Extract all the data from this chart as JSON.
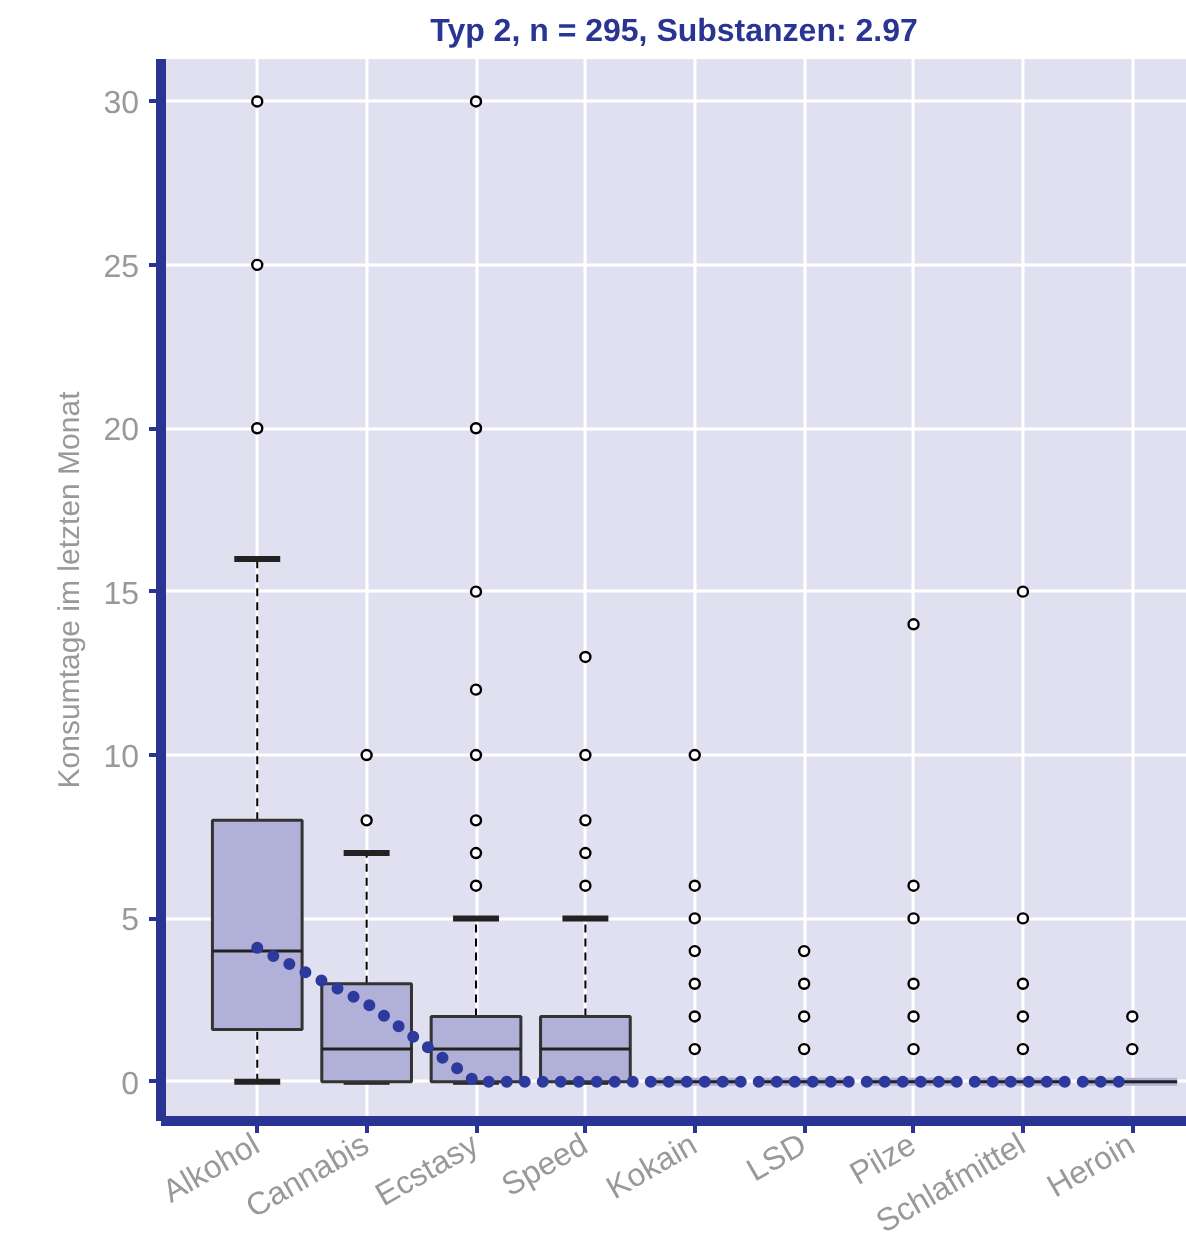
{
  "chart_data": {
    "type": "box",
    "title": "Typ 2, n = 295, Substanzen: 2.97",
    "ylabel": "Konsumtage im letzten Monat",
    "categories": [
      "Alkohol",
      "Cannabis",
      "Ecstasy",
      "Speed",
      "Kokain",
      "LSD",
      "Pilze",
      "Schlafmittel",
      "Heroin"
    ],
    "ylim": [
      -1.2,
      31.3
    ],
    "yticks": [
      0,
      5,
      10,
      15,
      20,
      25,
      30
    ],
    "grid": true,
    "series": [
      {
        "color": "#b0b0d8",
        "boxes": [
          {
            "low": 0,
            "q1": 1.6,
            "median": 4,
            "q3": 8,
            "high": 16,
            "outliers": [
              20,
              25,
              30
            ]
          },
          {
            "low": 0,
            "q1": 0,
            "median": 1,
            "q3": 3,
            "high": 7,
            "outliers": [
              8,
              10
            ]
          },
          {
            "low": 0,
            "q1": 0,
            "median": 1,
            "q3": 2,
            "high": 5,
            "outliers": [
              6,
              7,
              8,
              10,
              12,
              15,
              20,
              30
            ]
          },
          {
            "low": 0,
            "q1": 0,
            "median": 1,
            "q3": 2,
            "high": 5,
            "outliers": [
              6,
              7,
              8,
              10,
              13
            ]
          },
          {
            "low": 0,
            "q1": 0,
            "median": 0,
            "q3": 0,
            "high": 0,
            "outliers": [
              1,
              2,
              3,
              4,
              5,
              6,
              10
            ]
          },
          {
            "low": 0,
            "q1": 0,
            "median": 0,
            "q3": 0,
            "high": 0,
            "outliers": [
              1,
              2,
              3,
              4
            ]
          },
          {
            "low": 0,
            "q1": 0,
            "median": 0,
            "q3": 0,
            "high": 0,
            "outliers": [
              1,
              2,
              3,
              5,
              6,
              14
            ]
          },
          {
            "low": 0,
            "q1": 0,
            "median": 0,
            "q3": 0,
            "high": 0,
            "outliers": [
              1,
              2,
              3,
              5,
              15
            ]
          },
          {
            "low": 0,
            "q1": 0,
            "median": 0,
            "q3": 0,
            "high": 0,
            "outliers": [
              1,
              2
            ]
          }
        ]
      },
      {
        "type": "line",
        "color": "#2b3a9c",
        "line_style": "dotted",
        "marker": "none",
        "values": [
          4.1,
          2.4,
          0,
          0,
          0,
          0,
          0,
          0,
          0
        ]
      }
    ]
  }
}
